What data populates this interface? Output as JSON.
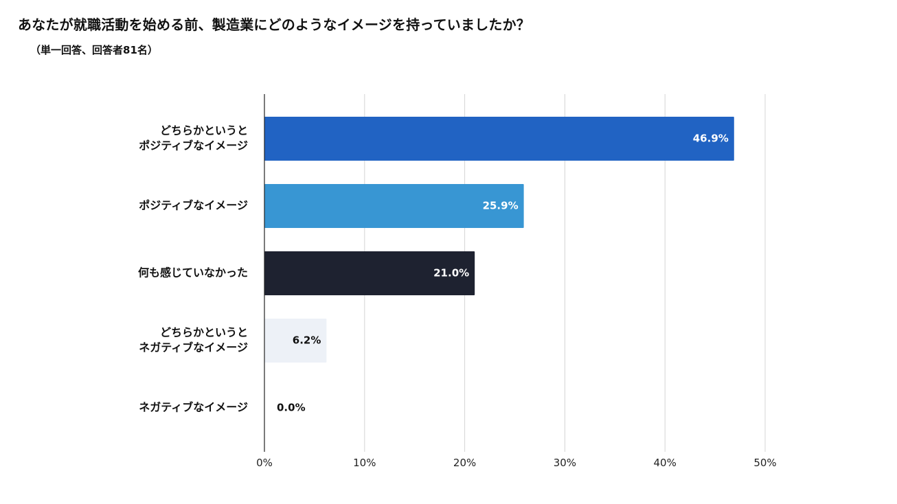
{
  "header": {
    "title": "あなたが就職活動を始める前、製造業にどのようなイメージを持っていましたか？",
    "subtitle": "（単一回答、回答者81名）"
  },
  "chart_data": {
    "type": "bar",
    "orientation": "horizontal",
    "title": "あなたが就職活動を始める前、製造業にどのようなイメージを持っていましたか？",
    "subtitle": "（単一回答、回答者81名）",
    "categories": [
      [
        "どちらかというと",
        "ポジティブなイメージ"
      ],
      [
        "ポジティブなイメージ"
      ],
      [
        "何も感じていなかった"
      ],
      [
        "どちらかというと",
        "ネガティブなイメージ"
      ],
      [
        "ネガティブなイメージ"
      ]
    ],
    "values": [
      46.9,
      25.9,
      21.0,
      6.2,
      0.0
    ],
    "data_labels": [
      "46.9%",
      "25.9%",
      "21.0%",
      "6.2%",
      "0.0%"
    ],
    "bar_colors": [
      "#2163c3",
      "#3896d3",
      "#1e2230",
      "#edf1f7",
      "#ffffff"
    ],
    "label_colors": [
      "#ffffff",
      "#ffffff",
      "#ffffff",
      "#111111",
      "#111111"
    ],
    "xlim": [
      0,
      50
    ],
    "xticks": [
      0,
      10,
      20,
      30,
      40,
      50
    ],
    "xtick_labels": [
      "0%",
      "10%",
      "20%",
      "30%",
      "40%",
      "50%"
    ],
    "grid": true,
    "legend": "none"
  }
}
